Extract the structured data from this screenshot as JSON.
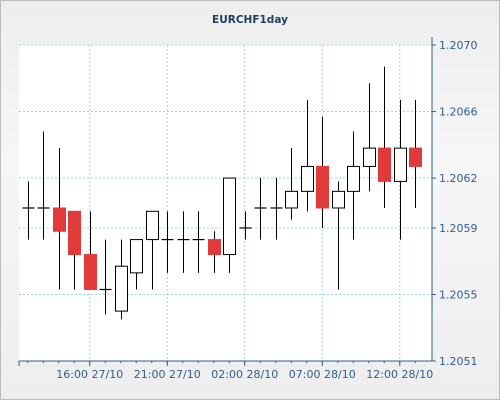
{
  "chart_data": {
    "type": "candlestick",
    "title": "EURCHF1day",
    "xlabel": "",
    "ylabel": "",
    "ylim": [
      1.2051,
      1.207
    ],
    "y_ticks": [
      "1.2070",
      "1.2066",
      "1.2062",
      "1.2059",
      "1.2055",
      "1.2051"
    ],
    "x_ticks": [
      "16:00 27/10",
      "21:00 27/10",
      "02:00 28/10",
      "07:00 28/10",
      "12:00 28/10"
    ],
    "x_tick_candle_index": [
      4,
      9,
      14,
      19,
      24
    ],
    "grid": true,
    "up_color": "#ffffff",
    "down_color": "#e03a3a",
    "candles": [
      {
        "open": 1.20602,
        "high": 1.20618,
        "low": 1.20583,
        "close": 1.20602
      },
      {
        "open": 1.20602,
        "high": 1.20648,
        "low": 1.20583,
        "close": 1.20602
      },
      {
        "open": 1.20602,
        "high": 1.20638,
        "low": 1.20553,
        "close": 1.20588
      },
      {
        "open": 1.206,
        "high": 1.206,
        "low": 1.20553,
        "close": 1.20574
      },
      {
        "open": 1.20574,
        "high": 1.206,
        "low": 1.20553,
        "close": 1.20553
      },
      {
        "open": 1.20553,
        "high": 1.20583,
        "low": 1.20538,
        "close": 1.20553
      },
      {
        "open": 1.2054,
        "high": 1.20583,
        "low": 1.20535,
        "close": 1.20567
      },
      {
        "open": 1.20563,
        "high": 1.20583,
        "low": 1.20553,
        "close": 1.20583
      },
      {
        "open": 1.20583,
        "high": 1.206,
        "low": 1.20553,
        "close": 1.206
      },
      {
        "open": 1.20583,
        "high": 1.206,
        "low": 1.20563,
        "close": 1.20583
      },
      {
        "open": 1.20583,
        "high": 1.206,
        "low": 1.20563,
        "close": 1.20583
      },
      {
        "open": 1.20583,
        "high": 1.206,
        "low": 1.20563,
        "close": 1.20583
      },
      {
        "open": 1.20583,
        "high": 1.20588,
        "low": 1.20563,
        "close": 1.20574
      },
      {
        "open": 1.20574,
        "high": 1.2062,
        "low": 1.20563,
        "close": 1.2062
      },
      {
        "open": 1.2059,
        "high": 1.206,
        "low": 1.20583,
        "close": 1.2059
      },
      {
        "open": 1.20602,
        "high": 1.2062,
        "low": 1.20583,
        "close": 1.20602
      },
      {
        "open": 1.20602,
        "high": 1.2062,
        "low": 1.20583,
        "close": 1.20602
      },
      {
        "open": 1.20602,
        "high": 1.20638,
        "low": 1.20595,
        "close": 1.20612
      },
      {
        "open": 1.20612,
        "high": 1.20667,
        "low": 1.206,
        "close": 1.20627
      },
      {
        "open": 1.20627,
        "high": 1.20657,
        "low": 1.2059,
        "close": 1.20602
      },
      {
        "open": 1.20602,
        "high": 1.20618,
        "low": 1.20553,
        "close": 1.20612
      },
      {
        "open": 1.20612,
        "high": 1.20648,
        "low": 1.20583,
        "close": 1.20627
      },
      {
        "open": 1.20627,
        "high": 1.20677,
        "low": 1.20612,
        "close": 1.20638
      },
      {
        "open": 1.20638,
        "high": 1.20687,
        "low": 1.20602,
        "close": 1.20618
      },
      {
        "open": 1.20618,
        "high": 1.20667,
        "low": 1.20583,
        "close": 1.20638
      },
      {
        "open": 1.20638,
        "high": 1.20667,
        "low": 1.20602,
        "close": 1.20627
      }
    ]
  }
}
